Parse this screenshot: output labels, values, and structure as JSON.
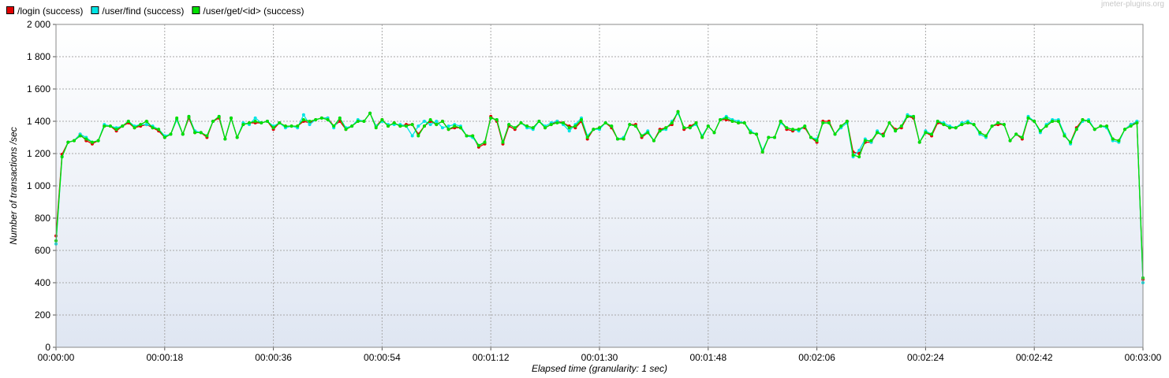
{
  "watermark": "jmeter-plugins.org",
  "chart_data": {
    "type": "line",
    "xlabel": "Elapsed time (granularity: 1 sec)",
    "ylabel": "Number of transactions /sec",
    "xlim": [
      0,
      180
    ],
    "ylim": [
      0,
      2000
    ],
    "x_unit": "seconds",
    "x_ticks": [
      "00:00:00",
      "00:00:18",
      "00:00:36",
      "00:00:54",
      "00:01:12",
      "00:01:30",
      "00:01:48",
      "00:02:06",
      "00:02:24",
      "00:02:42",
      "00:03:00"
    ],
    "y_ticks": [
      "0",
      "200",
      "400",
      "600",
      "800",
      "1 000",
      "1 200",
      "1 400",
      "1 600",
      "1 800",
      "2 000"
    ],
    "grid": true,
    "legend_position": "top-left",
    "series": [
      {
        "name": "/login (success)",
        "color": "#e00000",
        "values": [
          690,
          1195,
          1270,
          1280,
          1320,
          1280,
          1260,
          1280,
          1370,
          1370,
          1340,
          1370,
          1390,
          1360,
          1370,
          1380,
          1360,
          1340,
          1300,
          1320,
          1410,
          1320,
          1420,
          1330,
          1330,
          1300,
          1400,
          1420,
          1290,
          1420,
          1300,
          1380,
          1390,
          1390,
          1390,
          1400,
          1350,
          1390,
          1370,
          1370,
          1370,
          1400,
          1390,
          1410,
          1420,
          1420,
          1370,
          1400,
          1350,
          1370,
          1400,
          1400,
          1450,
          1370,
          1410,
          1370,
          1390,
          1370,
          1380,
          1380,
          1320,
          1370,
          1400,
          1380,
          1400,
          1350,
          1360,
          1360,
          1310,
          1310,
          1240,
          1260,
          1430,
          1400,
          1260,
          1370,
          1350,
          1390,
          1370,
          1360,
          1400,
          1360,
          1380,
          1400,
          1390,
          1370,
          1360,
          1400,
          1290,
          1350,
          1360,
          1390,
          1360,
          1290,
          1290,
          1380,
          1380,
          1300,
          1330,
          1280,
          1350,
          1360,
          1380,
          1460,
          1350,
          1370,
          1390,
          1300,
          1370,
          1330,
          1410,
          1410,
          1400,
          1390,
          1390,
          1330,
          1320,
          1210,
          1300,
          1300,
          1400,
          1350,
          1340,
          1350,
          1360,
          1300,
          1270,
          1400,
          1400,
          1320,
          1370,
          1400,
          1210,
          1200,
          1270,
          1270,
          1330,
          1320,
          1390,
          1350,
          1360,
          1430,
          1420,
          1270,
          1330,
          1310,
          1390,
          1380,
          1360,
          1360,
          1380,
          1390,
          1380,
          1330,
          1310,
          1370,
          1380,
          1380,
          1280,
          1320,
          1290,
          1420,
          1400,
          1340,
          1370,
          1400,
          1400,
          1310,
          1270,
          1360,
          1410,
          1400,
          1350,
          1370,
          1370,
          1290,
          1280,
          1350,
          1380,
          1390,
          420
        ]
      },
      {
        "name": "/user/find (success)",
        "color": "#00e5e5",
        "values": [
          640,
          1180,
          1270,
          1280,
          1320,
          1300,
          1270,
          1280,
          1380,
          1370,
          1360,
          1370,
          1400,
          1370,
          1380,
          1380,
          1370,
          1350,
          1310,
          1320,
          1410,
          1320,
          1430,
          1340,
          1330,
          1310,
          1400,
          1430,
          1290,
          1420,
          1300,
          1390,
          1380,
          1420,
          1390,
          1400,
          1370,
          1390,
          1360,
          1370,
          1360,
          1440,
          1380,
          1410,
          1420,
          1420,
          1360,
          1420,
          1360,
          1370,
          1410,
          1400,
          1450,
          1370,
          1400,
          1380,
          1380,
          1380,
          1370,
          1310,
          1370,
          1400,
          1380,
          1400,
          1360,
          1370,
          1380,
          1370,
          1310,
          1300,
          1250,
          1270,
          1420,
          1410,
          1270,
          1380,
          1360,
          1390,
          1360,
          1350,
          1400,
          1370,
          1390,
          1400,
          1380,
          1340,
          1380,
          1420,
          1310,
          1350,
          1350,
          1390,
          1370,
          1290,
          1300,
          1380,
          1370,
          1310,
          1340,
          1280,
          1340,
          1350,
          1400,
          1450,
          1360,
          1360,
          1380,
          1310,
          1370,
          1330,
          1410,
          1430,
          1410,
          1400,
          1390,
          1340,
          1320,
          1220,
          1300,
          1300,
          1390,
          1360,
          1350,
          1340,
          1370,
          1300,
          1290,
          1390,
          1390,
          1320,
          1360,
          1390,
          1180,
          1220,
          1290,
          1270,
          1340,
          1310,
          1390,
          1340,
          1370,
          1440,
          1430,
          1270,
          1340,
          1320,
          1400,
          1390,
          1370,
          1360,
          1390,
          1400,
          1380,
          1320,
          1300,
          1370,
          1390,
          1380,
          1280,
          1320,
          1300,
          1430,
          1400,
          1330,
          1380,
          1410,
          1410,
          1320,
          1260,
          1350,
          1400,
          1410,
          1350,
          1370,
          1360,
          1280,
          1270,
          1350,
          1380,
          1400,
          400
        ]
      },
      {
        "name": "/user/get/<id> (success)",
        "color": "#00e000",
        "values": [
          660,
          1180,
          1270,
          1280,
          1310,
          1290,
          1270,
          1280,
          1370,
          1370,
          1350,
          1370,
          1400,
          1360,
          1380,
          1400,
          1360,
          1350,
          1300,
          1320,
          1420,
          1320,
          1430,
          1330,
          1330,
          1310,
          1400,
          1430,
          1290,
          1420,
          1300,
          1380,
          1390,
          1400,
          1390,
          1400,
          1360,
          1390,
          1370,
          1370,
          1370,
          1410,
          1400,
          1410,
          1420,
          1410,
          1370,
          1420,
          1350,
          1370,
          1400,
          1400,
          1450,
          1360,
          1410,
          1370,
          1390,
          1370,
          1370,
          1380,
          1310,
          1370,
          1410,
          1380,
          1400,
          1350,
          1370,
          1360,
          1310,
          1310,
          1250,
          1270,
          1420,
          1410,
          1270,
          1380,
          1360,
          1390,
          1370,
          1360,
          1400,
          1360,
          1380,
          1390,
          1390,
          1360,
          1370,
          1410,
          1300,
          1350,
          1360,
          1390,
          1370,
          1290,
          1290,
          1380,
          1370,
          1310,
          1330,
          1280,
          1340,
          1360,
          1390,
          1460,
          1360,
          1360,
          1390,
          1300,
          1370,
          1330,
          1410,
          1420,
          1400,
          1390,
          1390,
          1330,
          1320,
          1210,
          1300,
          1300,
          1400,
          1360,
          1350,
          1350,
          1370,
          1300,
          1280,
          1390,
          1390,
          1320,
          1370,
          1400,
          1190,
          1180,
          1280,
          1280,
          1330,
          1310,
          1390,
          1340,
          1370,
          1430,
          1430,
          1270,
          1330,
          1320,
          1400,
          1380,
          1360,
          1360,
          1380,
          1390,
          1380,
          1330,
          1310,
          1370,
          1390,
          1380,
          1280,
          1320,
          1300,
          1420,
          1400,
          1340,
          1370,
          1400,
          1400,
          1310,
          1270,
          1350,
          1410,
          1400,
          1350,
          1370,
          1370,
          1290,
          1280,
          1350,
          1370,
          1390,
          430
        ]
      }
    ]
  }
}
